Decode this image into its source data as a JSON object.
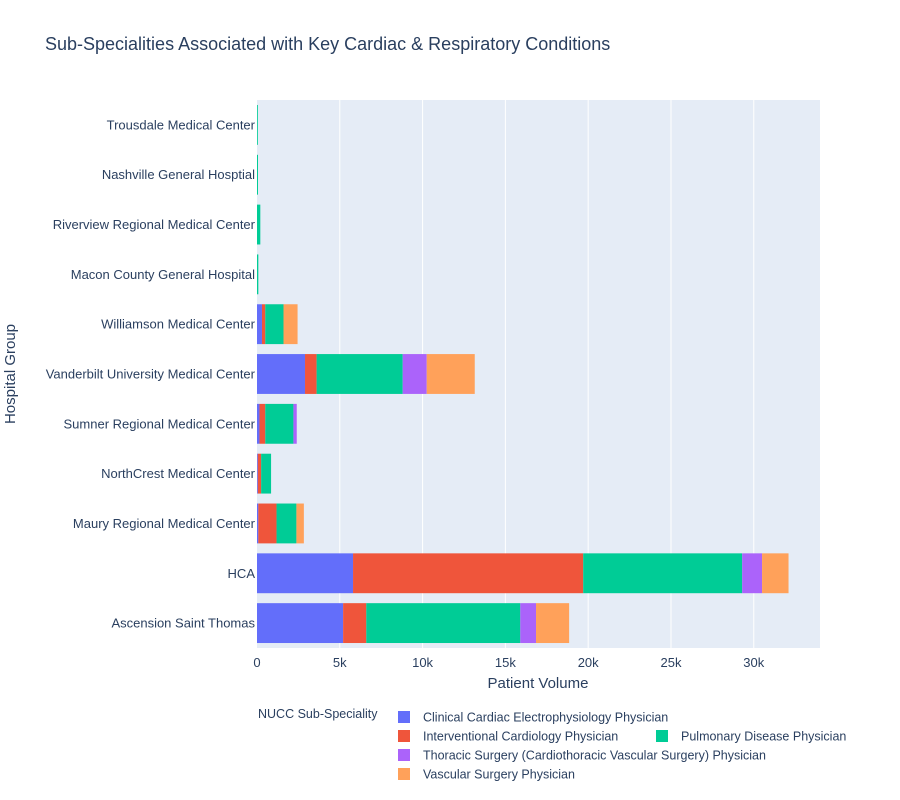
{
  "chart_data": {
    "type": "bar",
    "orientation": "horizontal",
    "barmode": "stack",
    "title": "Sub-Specialities Associated with Key Cardiac & Respiratory Conditions",
    "xlabel": "Patient Volume",
    "ylabel": "Hospital Group",
    "xlim": [
      0,
      34000
    ],
    "xticks": [
      0,
      5000,
      10000,
      15000,
      20000,
      25000,
      30000
    ],
    "xtick_labels": [
      "0",
      "5k",
      "10k",
      "15k",
      "20k",
      "25k",
      "30k"
    ],
    "grid": true,
    "legend_title": "NUCC Sub-Speciality",
    "legend_position": "bottom",
    "categories": [
      "Ascension Saint Thomas",
      "HCA",
      "Maury Regional Medical Center",
      "NorthCrest Medical Center",
      "Sumner Regional Medical Center",
      "Vanderbilt University Medical Center",
      "Williamson Medical Center",
      "Macon County General Hospital",
      "Riverview Regional Medical Center",
      "Nashville General Hosptial",
      "Trousdale Medical Center"
    ],
    "series": [
      {
        "name": "Clinical Cardiac Electrophysiology Physician",
        "color": "#636efa",
        "values": [
          5200,
          5800,
          80,
          50,
          150,
          2900,
          300,
          0,
          0,
          0,
          0
        ]
      },
      {
        "name": "Interventional Cardiology Physician",
        "color": "#ef553b",
        "values": [
          1400,
          13900,
          1100,
          200,
          350,
          700,
          200,
          0,
          0,
          0,
          0
        ]
      },
      {
        "name": "Pulmonary Disease Physician",
        "color": "#00cc96",
        "values": [
          9300,
          9600,
          1200,
          600,
          1700,
          5200,
          1100,
          80,
          200,
          60,
          50
        ]
      },
      {
        "name": "Thoracic Surgery (Cardiothoracic Vascular Surgery) Physician",
        "color": "#ab63fa",
        "values": [
          950,
          1200,
          0,
          0,
          200,
          1450,
          0,
          0,
          0,
          0,
          0
        ]
      },
      {
        "name": "Vascular Surgery Physician",
        "color": "#ffa15a",
        "values": [
          2000,
          1600,
          450,
          0,
          0,
          2900,
          850,
          0,
          0,
          0,
          0
        ]
      }
    ]
  }
}
